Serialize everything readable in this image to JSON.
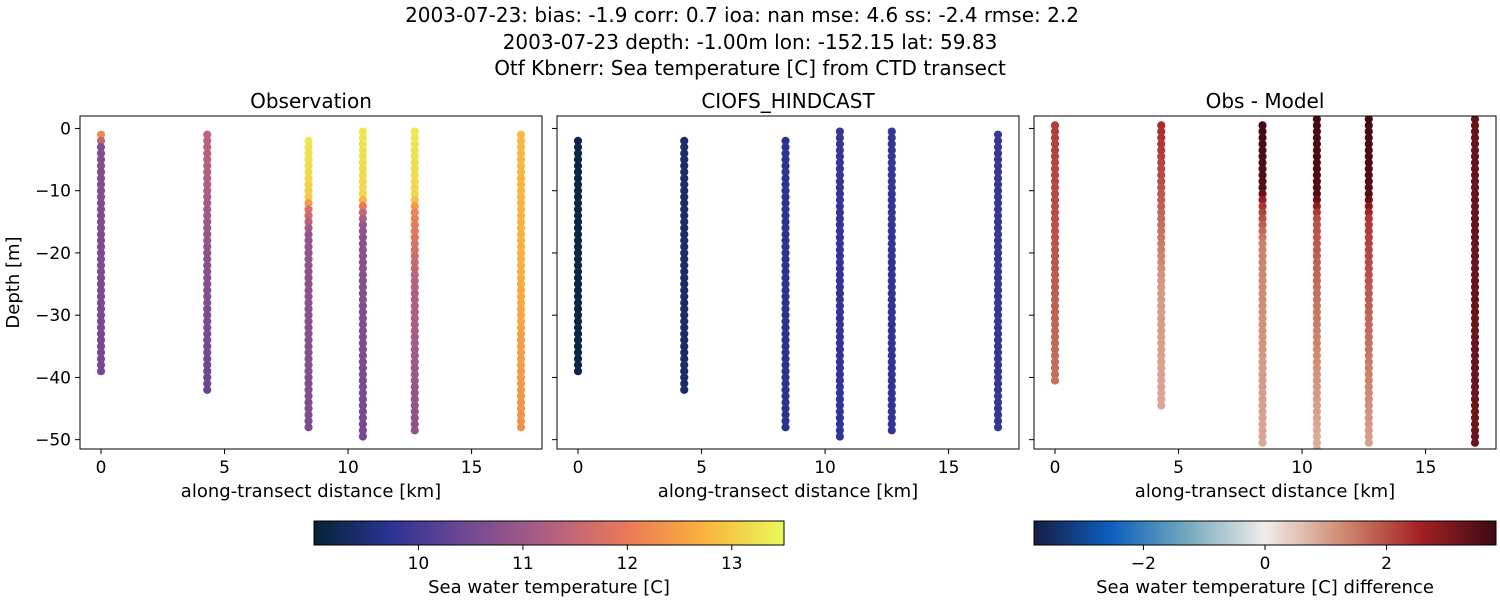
{
  "figure": {
    "title_lines": [
      "2003-07-23: bias: -1.9  corr: 0.7  ioa: nan  mse: 4.6  ss: -2.4  rmse: 2.2",
      "2003-07-23 depth: -1.00m lon: -152.15 lat: 59.83",
      "Otf Kbnerr: Sea temperature [C] from CTD transect"
    ]
  },
  "chart_data": [
    {
      "type": "scatter",
      "id": "obs",
      "title": "Observation",
      "xlabel": "along-transect distance [km]",
      "ylabel": "Depth [m]",
      "xlim": [
        -0.85,
        17.85
      ],
      "ylim": [
        -51.5,
        2.0
      ],
      "xticks": [
        0,
        5,
        10,
        15
      ],
      "yticks": [
        0,
        -10,
        -20,
        -30,
        -40,
        -50
      ],
      "colormap": "thermal",
      "clim": [
        9.0,
        13.5
      ],
      "profiles": [
        {
          "x": 0.0,
          "top": -1,
          "bottom": -39,
          "value_stops": [
            [
              -1,
              12.2
            ],
            [
              -3,
              10.7
            ],
            [
              -39,
              10.5
            ]
          ]
        },
        {
          "x": 4.3,
          "top": -1,
          "bottom": -42,
          "value_stops": [
            [
              -1,
              11.4
            ],
            [
              -10,
              11.2
            ],
            [
              -20,
              10.8
            ],
            [
              -42,
              10.4
            ]
          ]
        },
        {
          "x": 8.4,
          "top": -2,
          "bottom": -48,
          "value_stops": [
            [
              -2,
              13.3
            ],
            [
              -11,
              13.0
            ],
            [
              -13,
              11.8
            ],
            [
              -17,
              10.9
            ],
            [
              -48,
              10.6
            ]
          ]
        },
        {
          "x": 10.6,
          "top": -0.5,
          "bottom": -49,
          "value_stops": [
            [
              -0.5,
              13.3
            ],
            [
              -11,
              13.1
            ],
            [
              -13,
              11.6
            ],
            [
              -16,
              10.8
            ],
            [
              -49,
              10.5
            ]
          ]
        },
        {
          "x": 12.7,
          "top": -0.5,
          "bottom": -48,
          "value_stops": [
            [
              -0.5,
              13.3
            ],
            [
              -11,
              13.1
            ],
            [
              -13,
              12.2
            ],
            [
              -25,
              11.3
            ],
            [
              -48,
              10.8
            ]
          ]
        },
        {
          "x": 17.0,
          "top": -1,
          "bottom": -48,
          "value_stops": [
            [
              -1,
              12.8
            ],
            [
              -20,
              12.7
            ],
            [
              -48,
              12.3
            ]
          ]
        }
      ]
    },
    {
      "type": "scatter",
      "id": "model",
      "title": "CIOFS_HINDCAST",
      "xlabel": "along-transect distance [km]",
      "ylabel": "",
      "xlim": [
        -0.85,
        17.85
      ],
      "ylim": [
        -51.5,
        2.0
      ],
      "xticks": [
        0,
        5,
        10,
        15
      ],
      "yticks": [
        0,
        -10,
        -20,
        -30,
        -40,
        -50
      ],
      "colormap": "thermal",
      "clim": [
        9.0,
        13.5
      ],
      "profiles": [
        {
          "x": 0.0,
          "top": -2,
          "bottom": -39,
          "value_stops": [
            [
              -2,
              9.15
            ],
            [
              -39,
              9.15
            ]
          ]
        },
        {
          "x": 4.3,
          "top": -2,
          "bottom": -42,
          "value_stops": [
            [
              -2,
              9.45
            ],
            [
              -42,
              9.4
            ]
          ]
        },
        {
          "x": 8.4,
          "top": -2,
          "bottom": -48,
          "value_stops": [
            [
              -2,
              9.75
            ],
            [
              -48,
              9.7
            ]
          ]
        },
        {
          "x": 10.6,
          "top": -0.5,
          "bottom": -49,
          "value_stops": [
            [
              -0.5,
              9.85
            ],
            [
              -49,
              9.8
            ]
          ]
        },
        {
          "x": 12.7,
          "top": -0.5,
          "bottom": -48,
          "value_stops": [
            [
              -0.5,
              9.85
            ],
            [
              -48,
              9.8
            ]
          ]
        },
        {
          "x": 17.0,
          "top": -1,
          "bottom": -48,
          "value_stops": [
            [
              -1,
              9.9
            ],
            [
              -48,
              9.85
            ]
          ]
        }
      ]
    },
    {
      "type": "scatter",
      "id": "diff",
      "title": "Obs - Model",
      "xlabel": "along-transect distance [km]",
      "ylabel": "",
      "xlim": [
        -0.85,
        17.85
      ],
      "ylim": [
        -51.5,
        2.0
      ],
      "xticks": [
        0,
        5,
        10,
        15
      ],
      "yticks": [
        0,
        -10,
        -20,
        -30,
        -40,
        -50
      ],
      "colormap": "balance",
      "clim": [
        -3.8,
        3.8
      ],
      "profiles": [
        {
          "x": 0.0,
          "top": 0.5,
          "bottom": -40.5,
          "value_stops": [
            [
              0.5,
              2.2
            ],
            [
              -40.5,
              1.6
            ]
          ]
        },
        {
          "x": 4.3,
          "top": 0.5,
          "bottom": -44,
          "value_stops": [
            [
              0.5,
              2.4
            ],
            [
              -10,
              1.9
            ],
            [
              -25,
              1.1
            ],
            [
              -44,
              0.9
            ]
          ]
        },
        {
          "x": 8.4,
          "top": 0.5,
          "bottom": -50.5,
          "value_stops": [
            [
              0.5,
              3.7
            ],
            [
              -10,
              3.5
            ],
            [
              -12,
              2.4
            ],
            [
              -18,
              1.4
            ],
            [
              -50.5,
              0.9
            ]
          ]
        },
        {
          "x": 10.6,
          "top": 1.5,
          "bottom": -51,
          "value_stops": [
            [
              1.5,
              3.7
            ],
            [
              -11,
              3.5
            ],
            [
              -14,
              2.0
            ],
            [
              -51,
              0.8
            ]
          ]
        },
        {
          "x": 12.7,
          "top": 1.5,
          "bottom": -50.5,
          "value_stops": [
            [
              1.5,
              3.7
            ],
            [
              -11,
              3.5
            ],
            [
              -14,
              2.3
            ],
            [
              -50.5,
              1.0
            ]
          ]
        },
        {
          "x": 17.0,
          "top": 1.5,
          "bottom": -50.5,
          "value_stops": [
            [
              1.5,
              3.3
            ],
            [
              -50.5,
              3.2
            ]
          ]
        }
      ]
    }
  ],
  "colorbars": [
    {
      "id": "temp",
      "colormap": "thermal",
      "range": [
        9.0,
        13.5
      ],
      "ticks": [
        10,
        11,
        12,
        13
      ],
      "label": "Sea water temperature [C]"
    },
    {
      "id": "diff",
      "colormap": "balance",
      "range": [
        -3.8,
        3.8
      ],
      "ticks": [
        -2,
        0,
        2
      ],
      "label": "Sea water temperature [C] difference"
    }
  ],
  "colors": {
    "thermal": [
      "#042333",
      "#2c3395",
      "#744992",
      "#b15f82",
      "#eb7958",
      "#fbb43d",
      "#e8fa5b"
    ],
    "balance": [
      "#181c43",
      "#0c5ebe",
      "#75aabe",
      "#f1eceb",
      "#d08b73",
      "#a52125",
      "#3c0912"
    ]
  }
}
